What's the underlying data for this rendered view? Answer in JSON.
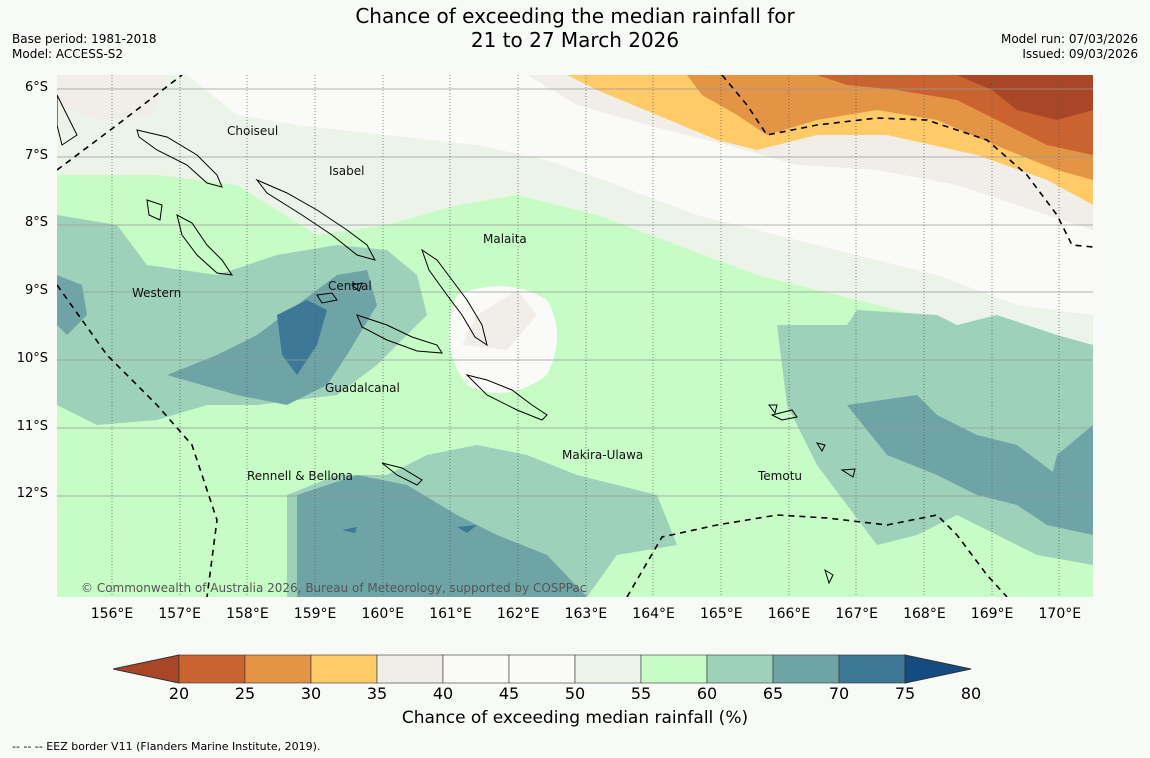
{
  "title": {
    "line1": "Chance of exceeding the median rainfall for",
    "line2": "21 to 27 March 2026"
  },
  "meta_left": {
    "base_period": "Base period: 1981-2018",
    "model": "Model: ACCESS-S2"
  },
  "meta_right": {
    "model_run": "Model run: 07/03/2026",
    "issued": "Issued: 09/03/2026"
  },
  "lat_labels": [
    "6°S",
    "7°S",
    "8°S",
    "9°S",
    "10°S",
    "11°S",
    "12°S"
  ],
  "lon_labels": [
    "156°E",
    "157°E",
    "158°E",
    "159°E",
    "160°E",
    "161°E",
    "162°E",
    "163°E",
    "164°E",
    "165°E",
    "166°E",
    "167°E",
    "168°E",
    "169°E",
    "170°E"
  ],
  "regions": [
    "Choiseul",
    "Isabel",
    "Malaita",
    "Western",
    "Central",
    "Guadalcanal",
    "Makira-Ulawa",
    "Rennell & Bellona",
    "Temotu"
  ],
  "copyright": "© Commonwealth of Australia 2026, Bureau of Meteorology, supported by COSPPac",
  "colorbar": {
    "ticks": [
      "20",
      "25",
      "30",
      "35",
      "40",
      "45",
      "50",
      "55",
      "60",
      "65",
      "70",
      "75",
      "80"
    ],
    "colors": [
      "#a84626",
      "#cb6331",
      "#e39545",
      "#fecb68",
      "#f1eee9",
      "#fafbf9",
      "#fafbf9",
      "#ecf4ea",
      "#c7fcc7",
      "#9ed1ba",
      "#6fa4a7",
      "#3d7896",
      "#144b80"
    ],
    "title": "Chance of exceeding median rainfall (%)"
  },
  "footnote": "--  --  -- EEZ border V11 (Flanders Marine Institute, 2019)."
}
